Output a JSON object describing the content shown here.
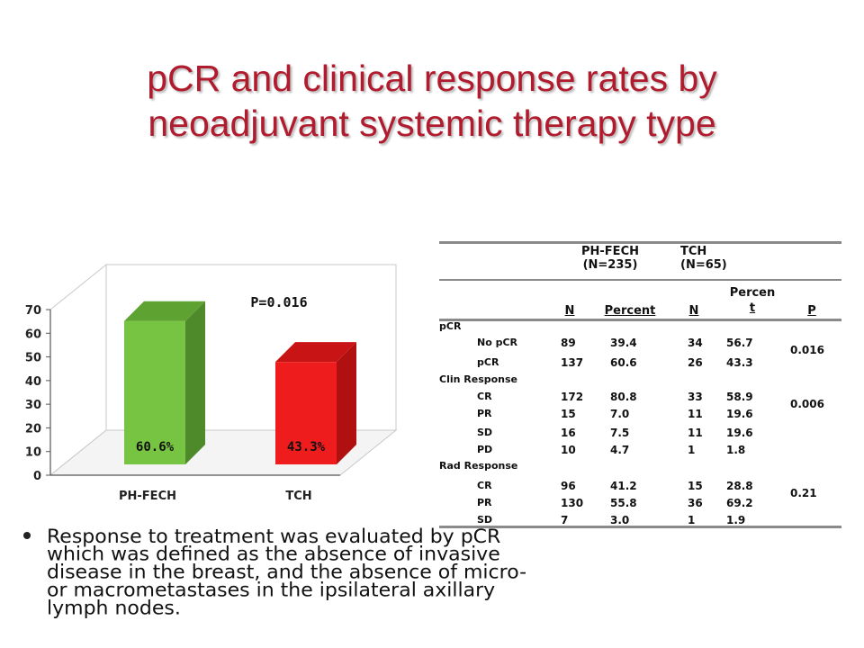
{
  "title": {
    "line1": "pCR and clinical response rates by",
    "line2": "neoadjuvant systemic therapy type"
  },
  "colors": {
    "title": "#b11b2e",
    "bar_ph_fech": "#76c442",
    "bar_tch": "#ee1c1c"
  },
  "chart_data": {
    "type": "bar",
    "categories": [
      "PH-FECH",
      "TCH"
    ],
    "values": [
      60.6,
      43.3
    ],
    "data_labels": [
      "60.6%",
      "43.3%"
    ],
    "annotation": "P=0.016",
    "ylim": [
      0,
      70
    ],
    "yticks": [
      0,
      10,
      20,
      30,
      40,
      50,
      60,
      70
    ],
    "grid": false,
    "style": "3d"
  },
  "table": {
    "group_headers": [
      {
        "name": "PH-FECH",
        "n": "(N=235)"
      },
      {
        "name": "TCH",
        "n": "(N=65)"
      }
    ],
    "col_headers": [
      "N",
      "Percent",
      "N",
      "Percen t",
      "P"
    ],
    "col_header_tch_pct_line1": "Percen",
    "col_header_tch_pct_line2": "t",
    "rows": [
      {
        "label": "pCR",
        "indent": false,
        "n1": "",
        "p1": "",
        "n2": "",
        "p2": "",
        "pv": ""
      },
      {
        "label": "No pCR",
        "indent": true,
        "n1": "89",
        "p1": "39.4",
        "n2": "34",
        "p2": "56.7",
        "pv": "0.016"
      },
      {
        "label": "pCR",
        "indent": true,
        "n1": "137",
        "p1": "60.6",
        "n2": "26",
        "p2": "43.3",
        "pv": ""
      },
      {
        "label": "Clin Response",
        "indent": false,
        "n1": "",
        "p1": "",
        "n2": "",
        "p2": "",
        "pv": ""
      },
      {
        "label": "CR",
        "indent": true,
        "n1": "172",
        "p1": "80.8",
        "n2": "33",
        "p2": "58.9",
        "pv": "0.006"
      },
      {
        "label": "PR",
        "indent": true,
        "n1": "15",
        "p1": "7.0",
        "n2": "11",
        "p2": "19.6",
        "pv": ""
      },
      {
        "label": "SD",
        "indent": true,
        "n1": "16",
        "p1": "7.5",
        "n2": "11",
        "p2": "19.6",
        "pv": ""
      },
      {
        "label": "PD",
        "indent": true,
        "n1": "10",
        "p1": "4.7",
        "n2": "1",
        "p2": "1.8",
        "pv": ""
      },
      {
        "label": "Rad Response",
        "indent": false,
        "n1": "",
        "p1": "",
        "n2": "",
        "p2": "",
        "pv": ""
      },
      {
        "label": "CR",
        "indent": true,
        "n1": "96",
        "p1": "41.2",
        "n2": "15",
        "p2": "28.8",
        "pv": "0.21"
      },
      {
        "label": "PR",
        "indent": true,
        "n1": "130",
        "p1": "55.8",
        "n2": "36",
        "p2": "69.2",
        "pv": ""
      },
      {
        "label": "SD",
        "indent": true,
        "n1": "7",
        "p1": "3.0",
        "n2": "1",
        "p2": "1.9",
        "pv": ""
      }
    ]
  },
  "bullet": {
    "line1": "Response to treatment was evaluated by pCR",
    "line2": "which was defined as the absence of invasive",
    "line3": "disease in the breast, and the absence of micro-",
    "line4": "or macrometastases in the ipsilateral axillary",
    "line5": "lymph nodes."
  }
}
